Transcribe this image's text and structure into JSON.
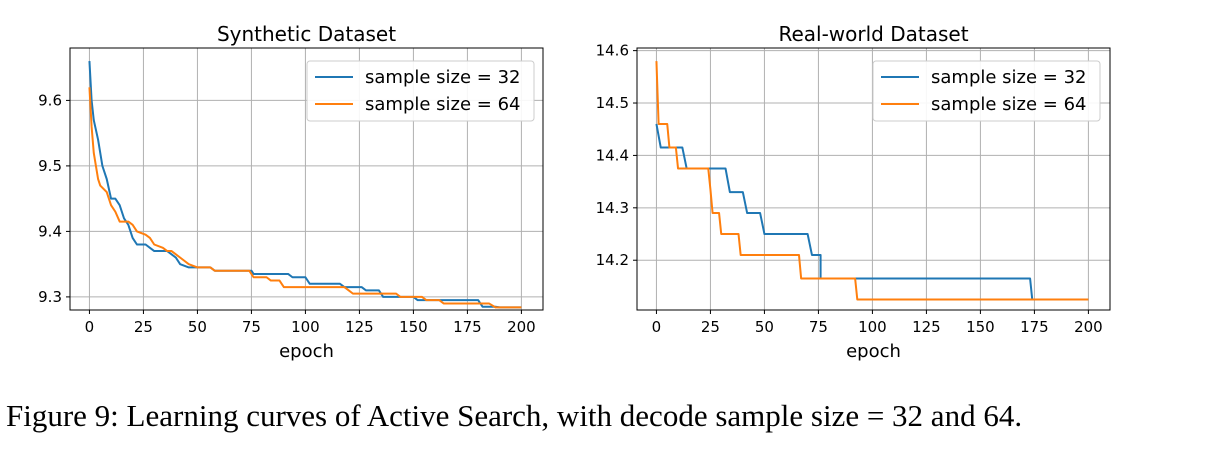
{
  "caption": "Figure 9: Learning curves of Active Search, with decode sample size = 32 and 64.",
  "colors": {
    "series_32": "#1f77b4",
    "series_64": "#ff7f0e",
    "grid": "#b0b0b0",
    "axis": "#000000"
  },
  "chart_data": [
    {
      "type": "line",
      "title": "Synthetic Dataset",
      "xlabel": "epoch",
      "ylabel": "",
      "xlim": [
        -9,
        210
      ],
      "ylim": [
        9.28,
        9.68
      ],
      "xticks": [
        0,
        25,
        50,
        75,
        100,
        125,
        150,
        175,
        200
      ],
      "yticks": [
        9.3,
        9.4,
        9.5,
        9.6
      ],
      "grid": true,
      "legend": "top-right",
      "series": [
        {
          "name": "sample size = 32",
          "color": "#1f77b4",
          "step": false,
          "points": [
            [
              0,
              9.66
            ],
            [
              1,
              9.6
            ],
            [
              2,
              9.57
            ],
            [
              4,
              9.54
            ],
            [
              6,
              9.5
            ],
            [
              8,
              9.48
            ],
            [
              10,
              9.45
            ],
            [
              12,
              9.45
            ],
            [
              14,
              9.44
            ],
            [
              16,
              9.42
            ],
            [
              18,
              9.41
            ],
            [
              20,
              9.39
            ],
            [
              22,
              9.38
            ],
            [
              26,
              9.38
            ],
            [
              28,
              9.375
            ],
            [
              30,
              9.37
            ],
            [
              36,
              9.37
            ],
            [
              38,
              9.365
            ],
            [
              40,
              9.36
            ],
            [
              42,
              9.35
            ],
            [
              46,
              9.345
            ],
            [
              50,
              9.345
            ],
            [
              56,
              9.345
            ],
            [
              58,
              9.34
            ],
            [
              75,
              9.34
            ],
            [
              76,
              9.335
            ],
            [
              92,
              9.335
            ],
            [
              94,
              9.33
            ],
            [
              100,
              9.33
            ],
            [
              102,
              9.32
            ],
            [
              116,
              9.32
            ],
            [
              118,
              9.315
            ],
            [
              126,
              9.315
            ],
            [
              128,
              9.31
            ],
            [
              134,
              9.31
            ],
            [
              136,
              9.3
            ],
            [
              150,
              9.3
            ],
            [
              152,
              9.295
            ],
            [
              180,
              9.295
            ],
            [
              182,
              9.285
            ],
            [
              188,
              9.285
            ],
            [
              190,
              9.284
            ],
            [
              200,
              9.284
            ]
          ]
        },
        {
          "name": "sample size = 64",
          "color": "#ff7f0e",
          "step": false,
          "points": [
            [
              0,
              9.62
            ],
            [
              1,
              9.56
            ],
            [
              2,
              9.52
            ],
            [
              3,
              9.5
            ],
            [
              4,
              9.48
            ],
            [
              5,
              9.47
            ],
            [
              8,
              9.46
            ],
            [
              10,
              9.44
            ],
            [
              12,
              9.43
            ],
            [
              14,
              9.415
            ],
            [
              18,
              9.415
            ],
            [
              20,
              9.41
            ],
            [
              22,
              9.4
            ],
            [
              26,
              9.395
            ],
            [
              28,
              9.39
            ],
            [
              30,
              9.38
            ],
            [
              34,
              9.375
            ],
            [
              36,
              9.37
            ],
            [
              38,
              9.37
            ],
            [
              40,
              9.365
            ],
            [
              44,
              9.355
            ],
            [
              46,
              9.35
            ],
            [
              50,
              9.345
            ],
            [
              56,
              9.345
            ],
            [
              58,
              9.34
            ],
            [
              74,
              9.34
            ],
            [
              76,
              9.33
            ],
            [
              82,
              9.33
            ],
            [
              84,
              9.325
            ],
            [
              88,
              9.325
            ],
            [
              90,
              9.315
            ],
            [
              118,
              9.315
            ],
            [
              120,
              9.31
            ],
            [
              122,
              9.305
            ],
            [
              142,
              9.305
            ],
            [
              144,
              9.3
            ],
            [
              154,
              9.3
            ],
            [
              156,
              9.295
            ],
            [
              162,
              9.295
            ],
            [
              164,
              9.29
            ],
            [
              185,
              9.29
            ],
            [
              188,
              9.284
            ],
            [
              200,
              9.284
            ]
          ]
        }
      ]
    },
    {
      "type": "line",
      "title": "Real-world Dataset",
      "xlabel": "epoch",
      "ylabel": "",
      "xlim": [
        -9,
        210
      ],
      "ylim": [
        14.105,
        14.605
      ],
      "xticks": [
        0,
        25,
        50,
        75,
        100,
        125,
        150,
        175,
        200
      ],
      "yticks": [
        14.2,
        14.3,
        14.4,
        14.5,
        14.6
      ],
      "grid": true,
      "legend": "top-right",
      "series": [
        {
          "name": "sample size = 32",
          "color": "#1f77b4",
          "step": true,
          "points": [
            [
              0,
              14.46
            ],
            [
              2,
              14.415
            ],
            [
              9,
              14.415
            ],
            [
              10,
              14.415
            ],
            [
              12,
              14.415
            ],
            [
              14,
              14.375
            ],
            [
              32,
              14.375
            ],
            [
              34,
              14.33
            ],
            [
              40,
              14.33
            ],
            [
              42,
              14.29
            ],
            [
              48,
              14.29
            ],
            [
              50,
              14.25
            ],
            [
              70,
              14.25
            ],
            [
              72,
              14.21
            ],
            [
              76,
              14.21
            ],
            [
              76,
              14.165
            ],
            [
              173,
              14.165
            ],
            [
              174,
              14.125
            ],
            [
              200,
              14.125
            ]
          ]
        },
        {
          "name": "sample size = 64",
          "color": "#ff7f0e",
          "step": true,
          "points": [
            [
              0,
              14.58
            ],
            [
              1,
              14.46
            ],
            [
              5,
              14.46
            ],
            [
              6,
              14.415
            ],
            [
              9,
              14.415
            ],
            [
              10,
              14.375
            ],
            [
              24,
              14.375
            ],
            [
              25,
              14.335
            ],
            [
              26,
              14.29
            ],
            [
              29,
              14.29
            ],
            [
              30,
              14.25
            ],
            [
              38,
              14.25
            ],
            [
              39,
              14.21
            ],
            [
              66,
              14.21
            ],
            [
              67,
              14.165
            ],
            [
              92,
              14.165
            ],
            [
              93,
              14.125
            ],
            [
              200,
              14.125
            ]
          ]
        }
      ]
    }
  ]
}
